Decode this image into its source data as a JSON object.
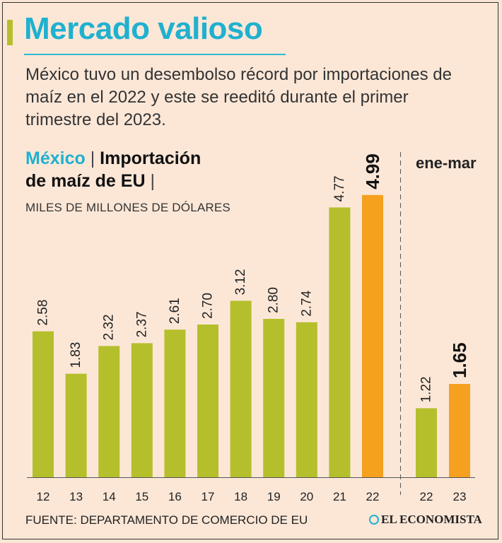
{
  "title": "Mercado valioso",
  "subtitle": "México tuvo un desembolso récord por importaciones de maíz en el 2022 y este se reeditó durante el primer trimestre del 2023.",
  "header": {
    "country": "México",
    "sep1": " | ",
    "topic_line1": "Importación",
    "topic_line2": "de maíz de EU",
    "sep2": " |"
  },
  "unit_label": "MILES DE MILLONES DE DÓLARES",
  "period_label": "ene-mar",
  "source": "FUENTE: DEPARTAMENTO DE COMERCIO DE EU",
  "publisher": "EL ECONOMISTA",
  "colors": {
    "bar": "#b5bf2c",
    "highlight": "#f5a01e",
    "title": "#1fb1cf",
    "axis": "#555555"
  },
  "chart_data": [
    {
      "type": "bar",
      "title": "México | Importación de maíz de EU",
      "ylabel": "Miles de millones de dólares",
      "categories": [
        "12",
        "13",
        "14",
        "15",
        "16",
        "17",
        "18",
        "19",
        "20",
        "21",
        "22"
      ],
      "values": [
        2.58,
        1.83,
        2.32,
        2.37,
        2.61,
        2.7,
        3.12,
        2.8,
        2.74,
        4.77,
        4.99
      ],
      "value_labels": [
        "2.58",
        "1.83",
        "2.32",
        "2.37",
        "2.61",
        "2.70",
        "3.12",
        "2.80",
        "2.74",
        "4.77",
        "4.99"
      ],
      "highlight_index": 10,
      "ylim": [
        0,
        5
      ]
    },
    {
      "type": "bar",
      "title": "ene-mar",
      "categories": [
        "22",
        "23"
      ],
      "values": [
        1.22,
        1.65
      ],
      "value_labels": [
        "1.22",
        "1.65"
      ],
      "highlight_index": 1,
      "ylim": [
        0,
        5
      ]
    }
  ]
}
